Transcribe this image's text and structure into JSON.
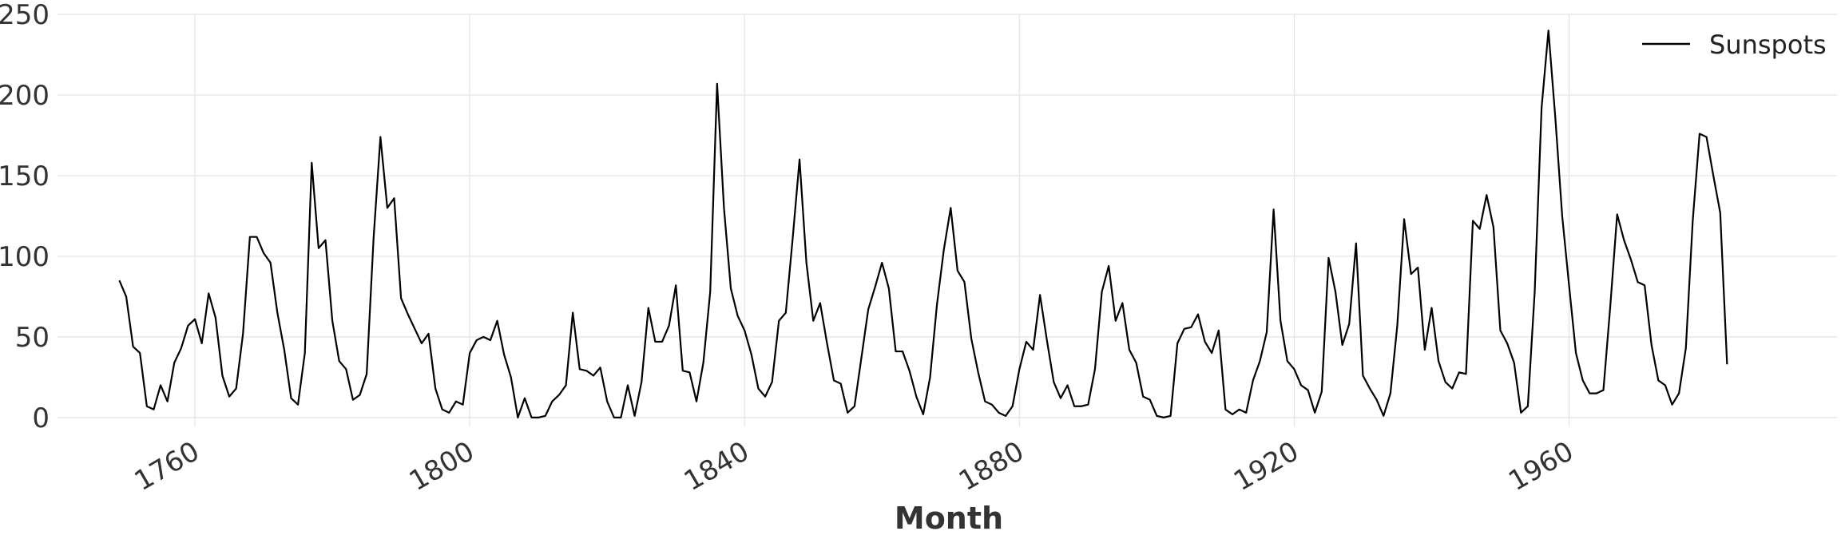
{
  "chart_data": {
    "type": "line",
    "xlabel": "Month",
    "ylabel": "",
    "title": "",
    "xlim": [
      1740,
      1999
    ],
    "ylim": [
      -6,
      250
    ],
    "x_ticks": [
      {
        "value": 1760,
        "label": "1760"
      },
      {
        "value": 1800,
        "label": "1800"
      },
      {
        "value": 1840,
        "label": "1840"
      },
      {
        "value": 1880,
        "label": "1880"
      },
      {
        "value": 1920,
        "label": "1920"
      },
      {
        "value": 1960,
        "label": "1960"
      }
    ],
    "y_ticks": [
      {
        "value": 0,
        "label": "0"
      },
      {
        "value": 50,
        "label": "50"
      },
      {
        "value": 100,
        "label": "100"
      },
      {
        "value": 150,
        "label": "150"
      },
      {
        "value": 200,
        "label": "200"
      },
      {
        "value": 250,
        "label": "250"
      }
    ],
    "grid": true,
    "legend_position": "top-right",
    "series": [
      {
        "name": "Sunspots",
        "color": "#000000",
        "x_start": 1749,
        "x_step": 1,
        "values": [
          85,
          75,
          44,
          40,
          7,
          5,
          20,
          10,
          34,
          43,
          57,
          61,
          46,
          77,
          62,
          26,
          13,
          18,
          52,
          112,
          112,
          102,
          96,
          65,
          42,
          12,
          8,
          40,
          158,
          105,
          110,
          60,
          35,
          30,
          11,
          14,
          27,
          111,
          174,
          130,
          136,
          74,
          64,
          55,
          46,
          52,
          18,
          5,
          3,
          10,
          8,
          40,
          48,
          50,
          48,
          60,
          39,
          25,
          0,
          12,
          0,
          0,
          1,
          10,
          14,
          20,
          65,
          30,
          29,
          26,
          31,
          10,
          0,
          0,
          20,
          1,
          22,
          68,
          47,
          47,
          57,
          82,
          29,
          28,
          10,
          34,
          78,
          207,
          130,
          80,
          63,
          54,
          39,
          18,
          13,
          22,
          60,
          65,
          111,
          160,
          96,
          60,
          71,
          46,
          23,
          21,
          3,
          7,
          37,
          67,
          81,
          96,
          80,
          41,
          41,
          29,
          13,
          2,
          25,
          70,
          104,
          130,
          91,
          84,
          49,
          28,
          10,
          8,
          3,
          1,
          7,
          30,
          47,
          42,
          76,
          48,
          22,
          12,
          20,
          7,
          7,
          8,
          30,
          78,
          94,
          60,
          71,
          42,
          34,
          13,
          11,
          1,
          0,
          1,
          46,
          55,
          56,
          64,
          47,
          40,
          54,
          5,
          2,
          5,
          3,
          23,
          35,
          53,
          129,
          60,
          35,
          30,
          20,
          17,
          3,
          16,
          99,
          78,
          45,
          58,
          108,
          26,
          18,
          11,
          1,
          15,
          57,
          123,
          89,
          93,
          42,
          68,
          35,
          22,
          18,
          28,
          27,
          122,
          117,
          138,
          118,
          54,
          46,
          34,
          3,
          7,
          78,
          192,
          240,
          186,
          125,
          82,
          40,
          23,
          15,
          15,
          17,
          69,
          126,
          110,
          98,
          84,
          82,
          45,
          23,
          20,
          8,
          15,
          43,
          122,
          176,
          174,
          150,
          127,
          33
        ]
      }
    ]
  }
}
